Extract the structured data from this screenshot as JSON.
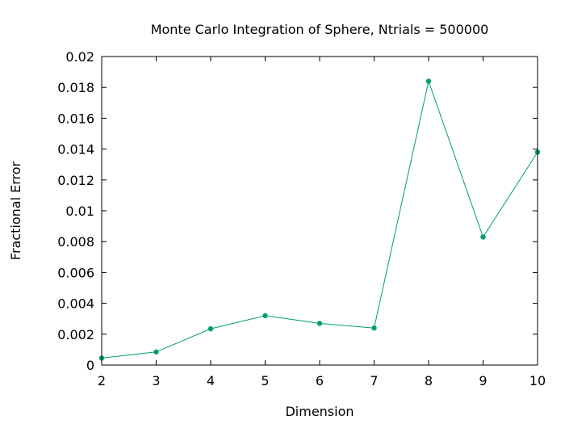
{
  "chart_data": {
    "type": "line",
    "title": "Monte Carlo Integration of Sphere, Ntrials = 500000",
    "xlabel": "Dimension",
    "ylabel": "Fractional Error",
    "xlim": [
      2,
      10
    ],
    "ylim": [
      0,
      0.02
    ],
    "x_ticks": [
      "2",
      "3",
      "4",
      "5",
      "6",
      "7",
      "8",
      "9",
      "10"
    ],
    "y_ticks": [
      "0",
      "0.002",
      "0.004",
      "0.006",
      "0.008",
      "0.01",
      "0.012",
      "0.014",
      "0.016",
      "0.018",
      "0.02"
    ],
    "grid": false,
    "series": [
      {
        "x": [
          2,
          3,
          4,
          5,
          6,
          7,
          8,
          9,
          10
        ],
        "values": [
          0.00045,
          0.00085,
          0.00235,
          0.0032,
          0.0027,
          0.0024,
          0.0184,
          0.0083,
          0.0138
        ],
        "color": "#009e73"
      }
    ]
  }
}
